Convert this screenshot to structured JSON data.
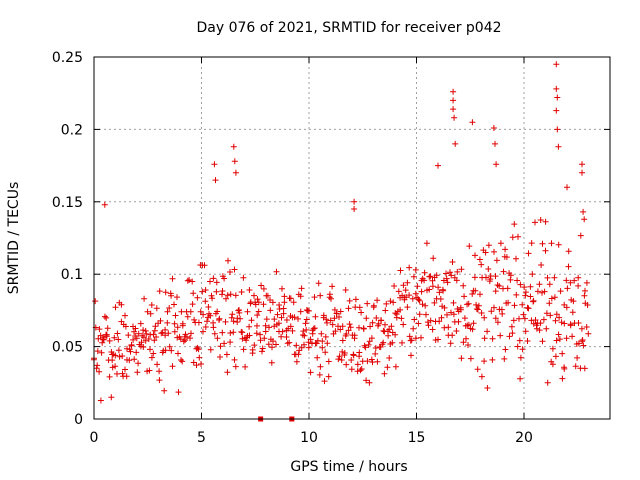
{
  "chart_data": {
    "type": "scatter",
    "title": "Day 076 of 2021, SRMTID for receiver p042",
    "xlabel": "GPS time / hours",
    "ylabel": "SRMTID / TECUs",
    "xlim": [
      0,
      24
    ],
    "ylim": [
      0,
      0.25
    ],
    "x_ticks": [
      0,
      5,
      10,
      15,
      20
    ],
    "x_tick_labels": [
      "0",
      "5",
      "10",
      "15",
      "20"
    ],
    "y_ticks": [
      0,
      0.05,
      0.1,
      0.15,
      0.2,
      0.25
    ],
    "y_tick_labels": [
      "0",
      "0.05",
      "0.1",
      "0.15",
      "0.2",
      "0.25"
    ],
    "grid": true,
    "marker": "plus",
    "series_color": "#e00000",
    "series": [
      {
        "name": "SRMTID",
        "x_start": 0.0,
        "x_step": 0.06,
        "band_breakpoints": [
          {
            "x": 0,
            "mid": 0.05,
            "spread": 0.018
          },
          {
            "x": 3,
            "mid": 0.052,
            "spread": 0.018
          },
          {
            "x": 5,
            "mid": 0.078,
            "spread": 0.025
          },
          {
            "x": 7,
            "mid": 0.068,
            "spread": 0.02
          },
          {
            "x": 10,
            "mid": 0.062,
            "spread": 0.018
          },
          {
            "x": 13,
            "mid": 0.055,
            "spread": 0.018
          },
          {
            "x": 15,
            "mid": 0.08,
            "spread": 0.025
          },
          {
            "x": 18,
            "mid": 0.085,
            "spread": 0.028
          },
          {
            "x": 21,
            "mid": 0.08,
            "spread": 0.03
          },
          {
            "x": 23,
            "mid": 0.07,
            "spread": 0.025
          }
        ],
        "highlights": [
          {
            "x": 0.5,
            "y": 0.148
          },
          {
            "x": 5.6,
            "y": 0.176
          },
          {
            "x": 5.65,
            "y": 0.165
          },
          {
            "x": 6.5,
            "y": 0.188
          },
          {
            "x": 6.55,
            "y": 0.178
          },
          {
            "x": 6.6,
            "y": 0.17
          },
          {
            "x": 12.1,
            "y": 0.15
          },
          {
            "x": 12.1,
            "y": 0.145
          },
          {
            "x": 16.0,
            "y": 0.175
          },
          {
            "x": 16.7,
            "y": 0.226
          },
          {
            "x": 16.7,
            "y": 0.22
          },
          {
            "x": 16.7,
            "y": 0.214
          },
          {
            "x": 16.75,
            "y": 0.208
          },
          {
            "x": 16.8,
            "y": 0.19
          },
          {
            "x": 17.6,
            "y": 0.205
          },
          {
            "x": 18.6,
            "y": 0.201
          },
          {
            "x": 18.65,
            "y": 0.19
          },
          {
            "x": 18.7,
            "y": 0.176
          },
          {
            "x": 21.5,
            "y": 0.245
          },
          {
            "x": 21.5,
            "y": 0.228
          },
          {
            "x": 21.55,
            "y": 0.222
          },
          {
            "x": 21.5,
            "y": 0.213
          },
          {
            "x": 21.55,
            "y": 0.2
          },
          {
            "x": 21.6,
            "y": 0.188
          },
          {
            "x": 22.0,
            "y": 0.16
          },
          {
            "x": 22.7,
            "y": 0.176
          },
          {
            "x": 22.7,
            "y": 0.17
          },
          {
            "x": 22.75,
            "y": 0.143
          },
          {
            "x": 22.8,
            "y": 0.138
          }
        ],
        "zero_points": [
          {
            "x": 7.75,
            "y": 0.0
          },
          {
            "x": 9.2,
            "y": 0.0
          }
        ]
      }
    ]
  }
}
